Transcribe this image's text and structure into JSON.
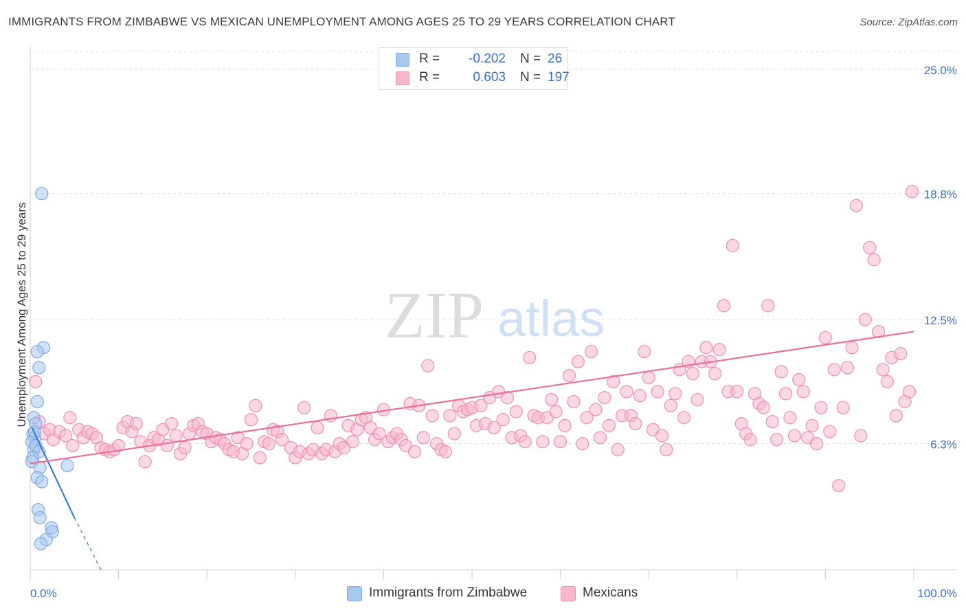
{
  "title": "IMMIGRANTS FROM ZIMBABWE VS MEXICAN UNEMPLOYMENT AMONG AGES 25 TO 29 YEARS CORRELATION CHART",
  "source": "Source: ZipAtlas.com",
  "watermark": {
    "zip": "ZIP",
    "atlas": "atlas"
  },
  "legend": {
    "rows": [
      {
        "r_label": "R =",
        "r_value": "-0.202",
        "n_label": "N =",
        "n_value": "26",
        "color": "#a8c8f0",
        "border": "#7ea9e0"
      },
      {
        "r_label": "R =",
        "r_value": "0.603",
        "n_label": "N =",
        "n_value": "197",
        "color": "#f7b8cc",
        "border": "#ee8fb0"
      }
    ]
  },
  "bottom_legend": [
    {
      "label": "Immigrants from Zimbabwe",
      "color": "#a8c8f0",
      "border": "#7ea9e0"
    },
    {
      "label": "Mexicans",
      "color": "#f7b8cc",
      "border": "#ee8fb0"
    }
  ],
  "chart_data": {
    "type": "scatter",
    "title": "IMMIGRANTS FROM ZIMBABWE VS MEXICAN UNEMPLOYMENT AMONG AGES 25 TO 29 YEARS CORRELATION CHART",
    "xlabel": "",
    "ylabel": "Unemployment Among Ages 25 to 29 years",
    "xlim": [
      0,
      100
    ],
    "ylim": [
      0,
      25.9
    ],
    "x_tick_labels": [
      "0.0%",
      "100.0%"
    ],
    "y_ticks": [
      6.3,
      12.5,
      18.8,
      25.0
    ],
    "y_tick_labels": [
      "6.3%",
      "12.5%",
      "18.8%",
      "25.0%"
    ],
    "grid": true,
    "series": [
      {
        "name": "Immigrants from Zimbabwe",
        "color": "#a8c8f0",
        "stroke": "#7ea9e0",
        "line_color": "#3a78d4",
        "trend": {
          "x": [
            0.2,
            5.0
          ],
          "y": [
            7.1,
            2.6
          ],
          "dashed_to": [
            8.0,
            0.0
          ]
        },
        "points": [
          [
            1.3,
            18.8
          ],
          [
            0.4,
            7.6
          ],
          [
            0.6,
            7.3
          ],
          [
            0.3,
            6.8
          ],
          [
            0.5,
            6.6
          ],
          [
            0.2,
            6.4
          ],
          [
            0.4,
            6.0
          ],
          [
            0.6,
            6.2
          ],
          [
            1.0,
            5.9
          ],
          [
            0.3,
            5.6
          ],
          [
            0.2,
            5.4
          ],
          [
            1.1,
            5.1
          ],
          [
            4.2,
            5.2
          ],
          [
            0.8,
            4.6
          ],
          [
            1.3,
            4.4
          ],
          [
            1.5,
            11.1
          ],
          [
            0.8,
            10.9
          ],
          [
            1.0,
            10.1
          ],
          [
            0.8,
            8.4
          ],
          [
            0.9,
            3.0
          ],
          [
            1.1,
            2.6
          ],
          [
            2.4,
            2.1
          ],
          [
            2.5,
            1.9
          ],
          [
            1.8,
            1.5
          ],
          [
            1.2,
            1.3
          ],
          [
            0.5,
            6.9
          ]
        ]
      },
      {
        "name": "Mexicans",
        "color": "#f7b8cc",
        "stroke": "#ee8fb0",
        "line_color": "#e86f9c",
        "trend": {
          "x": [
            0.0,
            100.0
          ],
          "y": [
            5.3,
            11.9
          ]
        },
        "points": [
          [
            0.6,
            9.4
          ],
          [
            1.0,
            7.4
          ],
          [
            1.6,
            6.8
          ],
          [
            2.2,
            7.0
          ],
          [
            2.6,
            6.5
          ],
          [
            3.3,
            6.9
          ],
          [
            4.0,
            6.7
          ],
          [
            4.5,
            7.6
          ],
          [
            4.8,
            6.2
          ],
          [
            5.5,
            7.0
          ],
          [
            6.0,
            6.6
          ],
          [
            6.5,
            6.9
          ],
          [
            7.0,
            6.8
          ],
          [
            7.5,
            6.6
          ],
          [
            8.0,
            6.1
          ],
          [
            8.5,
            6.0
          ],
          [
            9.0,
            5.9
          ],
          [
            9.5,
            6.0
          ],
          [
            10.0,
            6.2
          ],
          [
            10.5,
            7.1
          ],
          [
            11.0,
            7.4
          ],
          [
            11.5,
            6.9
          ],
          [
            12.0,
            7.3
          ],
          [
            12.5,
            6.4
          ],
          [
            13.0,
            5.4
          ],
          [
            13.5,
            6.2
          ],
          [
            14.0,
            6.6
          ],
          [
            14.5,
            6.5
          ],
          [
            15.0,
            7.0
          ],
          [
            15.5,
            6.2
          ],
          [
            16.0,
            7.3
          ],
          [
            16.5,
            6.7
          ],
          [
            17.0,
            5.8
          ],
          [
            17.5,
            6.1
          ],
          [
            18.0,
            6.8
          ],
          [
            18.5,
            7.2
          ],
          [
            19.0,
            7.3
          ],
          [
            19.5,
            6.9
          ],
          [
            20.0,
            6.8
          ],
          [
            20.5,
            6.4
          ],
          [
            21.0,
            6.6
          ],
          [
            21.5,
            6.5
          ],
          [
            22.0,
            6.3
          ],
          [
            22.5,
            6.0
          ],
          [
            23.0,
            5.9
          ],
          [
            23.5,
            6.6
          ],
          [
            24.0,
            5.8
          ],
          [
            24.5,
            6.3
          ],
          [
            25.0,
            7.5
          ],
          [
            25.5,
            8.2
          ],
          [
            26.0,
            5.6
          ],
          [
            26.5,
            6.4
          ],
          [
            27.0,
            6.3
          ],
          [
            27.5,
            7.0
          ],
          [
            28.0,
            6.9
          ],
          [
            28.5,
            6.5
          ],
          [
            29.5,
            6.1
          ],
          [
            30.0,
            5.6
          ],
          [
            30.5,
            5.9
          ],
          [
            31.0,
            8.1
          ],
          [
            31.5,
            5.8
          ],
          [
            32.0,
            6.0
          ],
          [
            32.5,
            7.1
          ],
          [
            33.0,
            5.8
          ],
          [
            33.5,
            6.0
          ],
          [
            34.0,
            7.7
          ],
          [
            34.5,
            5.9
          ],
          [
            35.0,
            6.3
          ],
          [
            35.5,
            6.1
          ],
          [
            36.0,
            7.2
          ],
          [
            36.5,
            6.4
          ],
          [
            37.0,
            7.0
          ],
          [
            37.5,
            7.5
          ],
          [
            38.0,
            7.6
          ],
          [
            38.5,
            7.1
          ],
          [
            39.0,
            6.5
          ],
          [
            39.5,
            6.8
          ],
          [
            40.0,
            8.0
          ],
          [
            40.5,
            6.4
          ],
          [
            41.0,
            6.6
          ],
          [
            41.5,
            6.8
          ],
          [
            42.0,
            6.5
          ],
          [
            42.5,
            6.2
          ],
          [
            43.0,
            8.3
          ],
          [
            43.5,
            5.9
          ],
          [
            44.0,
            8.2
          ],
          [
            44.5,
            6.6
          ],
          [
            45.0,
            10.2
          ],
          [
            45.5,
            7.7
          ],
          [
            46.0,
            6.3
          ],
          [
            46.5,
            6.0
          ],
          [
            47.0,
            5.9
          ],
          [
            47.5,
            7.7
          ],
          [
            48.0,
            6.8
          ],
          [
            48.5,
            8.2
          ],
          [
            49.0,
            7.9
          ],
          [
            49.5,
            8.0
          ],
          [
            50.0,
            8.1
          ],
          [
            50.5,
            7.2
          ],
          [
            51.0,
            8.2
          ],
          [
            51.5,
            7.3
          ],
          [
            52.0,
            8.6
          ],
          [
            52.5,
            7.1
          ],
          [
            53.0,
            8.9
          ],
          [
            53.5,
            7.5
          ],
          [
            54.0,
            8.6
          ],
          [
            54.5,
            6.6
          ],
          [
            55.0,
            7.9
          ],
          [
            55.5,
            6.7
          ],
          [
            56.0,
            6.4
          ],
          [
            56.5,
            10.6
          ],
          [
            57.0,
            7.7
          ],
          [
            57.5,
            7.6
          ],
          [
            58.0,
            6.4
          ],
          [
            58.5,
            7.6
          ],
          [
            59.0,
            8.5
          ],
          [
            59.5,
            7.9
          ],
          [
            60.0,
            6.4
          ],
          [
            60.5,
            7.2
          ],
          [
            61.0,
            9.7
          ],
          [
            61.5,
            8.4
          ],
          [
            62.0,
            10.4
          ],
          [
            62.5,
            6.3
          ],
          [
            63.0,
            7.6
          ],
          [
            63.5,
            10.9
          ],
          [
            64.0,
            8.0
          ],
          [
            64.5,
            6.6
          ],
          [
            65.0,
            8.6
          ],
          [
            65.5,
            7.2
          ],
          [
            66.0,
            9.4
          ],
          [
            66.5,
            6.0
          ],
          [
            67.0,
            7.7
          ],
          [
            67.5,
            8.9
          ],
          [
            68.0,
            7.7
          ],
          [
            68.5,
            7.3
          ],
          [
            69.0,
            8.7
          ],
          [
            69.5,
            10.9
          ],
          [
            70.0,
            9.6
          ],
          [
            70.5,
            7.0
          ],
          [
            71.0,
            8.9
          ],
          [
            71.5,
            6.7
          ],
          [
            72.0,
            6.0
          ],
          [
            72.5,
            8.2
          ],
          [
            73.0,
            8.8
          ],
          [
            73.5,
            10.0
          ],
          [
            74.0,
            7.6
          ],
          [
            74.5,
            10.4
          ],
          [
            75.0,
            9.8
          ],
          [
            75.5,
            8.5
          ],
          [
            76.0,
            10.4
          ],
          [
            76.5,
            11.1
          ],
          [
            77.0,
            10.4
          ],
          [
            77.5,
            9.8
          ],
          [
            78.0,
            11.0
          ],
          [
            78.5,
            13.2
          ],
          [
            79.0,
            8.9
          ],
          [
            79.5,
            16.2
          ],
          [
            80.0,
            8.9
          ],
          [
            80.5,
            7.3
          ],
          [
            81.0,
            6.8
          ],
          [
            81.5,
            6.5
          ],
          [
            82.0,
            8.8
          ],
          [
            82.5,
            8.3
          ],
          [
            83.0,
            8.1
          ],
          [
            83.5,
            13.2
          ],
          [
            84.0,
            7.4
          ],
          [
            84.5,
            6.5
          ],
          [
            85.0,
            9.9
          ],
          [
            85.5,
            8.8
          ],
          [
            86.0,
            7.6
          ],
          [
            86.5,
            6.7
          ],
          [
            87.0,
            9.5
          ],
          [
            87.5,
            8.9
          ],
          [
            88.0,
            6.6
          ],
          [
            88.5,
            7.2
          ],
          [
            89.0,
            6.3
          ],
          [
            89.5,
            8.1
          ],
          [
            90.0,
            11.6
          ],
          [
            90.5,
            6.9
          ],
          [
            91.0,
            10.0
          ],
          [
            91.5,
            4.2
          ],
          [
            92.0,
            8.1
          ],
          [
            92.5,
            10.1
          ],
          [
            93.0,
            11.1
          ],
          [
            93.5,
            18.2
          ],
          [
            94.0,
            6.7
          ],
          [
            94.5,
            12.5
          ],
          [
            95.0,
            16.1
          ],
          [
            95.5,
            15.5
          ],
          [
            96.0,
            11.9
          ],
          [
            96.5,
            10.0
          ],
          [
            97.0,
            9.4
          ],
          [
            97.5,
            10.6
          ],
          [
            98.0,
            7.7
          ],
          [
            98.5,
            10.8
          ],
          [
            99.0,
            8.4
          ],
          [
            99.5,
            8.9
          ],
          [
            99.8,
            18.9
          ]
        ]
      }
    ]
  }
}
